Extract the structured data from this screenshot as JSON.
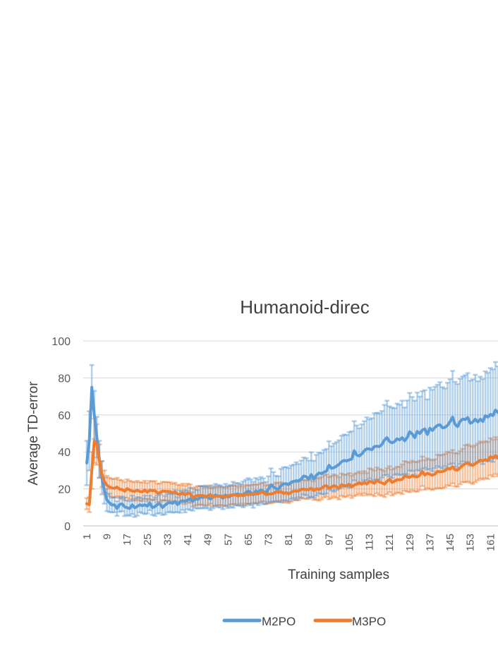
{
  "chart_data": {
    "type": "line",
    "title": "Humanoid-direc",
    "xlabel": "Training samples",
    "ylabel": "Average TD-error",
    "x": [
      1,
      2,
      3,
      4,
      5,
      6,
      7,
      8,
      9,
      10,
      11,
      12,
      13,
      14,
      15,
      16,
      17,
      18,
      19,
      20,
      21,
      22,
      23,
      24,
      25,
      26,
      27,
      28,
      29,
      30,
      31,
      32,
      33,
      34,
      35,
      36,
      37,
      38,
      39,
      40,
      41,
      42,
      43,
      44,
      45,
      46,
      47,
      48,
      49,
      50,
      51,
      52,
      53,
      54,
      55,
      56,
      57,
      58,
      59,
      60,
      61,
      62,
      63,
      64,
      65,
      66,
      67,
      68,
      69,
      70,
      71,
      72,
      73,
      74,
      75,
      76,
      77,
      78,
      79,
      80,
      81,
      82,
      83,
      84,
      85,
      86,
      87,
      88,
      89,
      90,
      91,
      92,
      93,
      94,
      95,
      96,
      97,
      98,
      99,
      100,
      101,
      102,
      103,
      104,
      105,
      106,
      107,
      108,
      109,
      110,
      111,
      112,
      113,
      114,
      115,
      116,
      117,
      118,
      119,
      120,
      121,
      122,
      123,
      124,
      125,
      126,
      127,
      128,
      129,
      130,
      131,
      132,
      133,
      134,
      135,
      136,
      137,
      138,
      139,
      140,
      141,
      142,
      143,
      144,
      145,
      146,
      147,
      148,
      149,
      150,
      151,
      152,
      153,
      154,
      155,
      156,
      157,
      158,
      159,
      160,
      161,
      162,
      163,
      164
    ],
    "x_ticks": [
      1,
      9,
      17,
      25,
      33,
      41,
      49,
      57,
      65,
      73,
      81,
      89,
      97,
      105,
      113,
      121,
      129,
      137,
      145,
      153,
      161
    ],
    "y_ticks": [
      0,
      20,
      40,
      60,
      80,
      100
    ],
    "ylim": [
      0,
      100
    ],
    "grid": "horizontal",
    "legend_position": "bottom",
    "error_bars": true,
    "series": [
      {
        "name": "M2PO",
        "color": "#5B9BD5",
        "values": [
          34.0,
          46.0,
          75.0,
          60.0,
          48.0,
          36.0,
          26.0,
          19.0,
          14.0,
          12.5,
          11.3,
          11.4,
          9.4,
          11.6,
          11.9,
          10.3,
          9.8,
          9.4,
          11.4,
          9.8,
          10.5,
          11.4,
          10.9,
          11.4,
          10.7,
          12.4,
          9.9,
          10.4,
          11.6,
          11.9,
          9.9,
          11.2,
          12.3,
          12.6,
          12.2,
          13.3,
          11.5,
          13.1,
          13.6,
          13.3,
          14.0,
          14.6,
          13.2,
          14.6,
          14.3,
          15.6,
          15.4,
          15.8,
          15.4,
          14.5,
          15.5,
          16.7,
          16.1,
          15.9,
          15.0,
          16.7,
          15.6,
          16.2,
          16.8,
          17.0,
          17.2,
          16.7,
          17.0,
          17.9,
          18.8,
          18.1,
          16.8,
          18.9,
          18.2,
          19.4,
          18.7,
          17.8,
          19.8,
          22.1,
          21.1,
          20.1,
          19.8,
          21.8,
          22.7,
          22.8,
          22.3,
          23.6,
          24.1,
          24.4,
          24.4,
          25.3,
          27.0,
          26.6,
          25.3,
          27.8,
          25.2,
          27.4,
          28.6,
          28.3,
          29.0,
          29.6,
          32.8,
          31.1,
          31.5,
          32.3,
          33.3,
          34.7,
          35.4,
          35.1,
          35.7,
          36.1,
          40.6,
          38.3,
          37.8,
          38.9,
          40.6,
          41.7,
          41.6,
          41.2,
          42.9,
          43.1,
          42.9,
          44.1,
          46.4,
          47.7,
          45.6,
          44.9,
          45.6,
          47.1,
          46.5,
          47.7,
          46.0,
          47.8,
          50.9,
          49.7,
          47.7,
          51.1,
          49.9,
          51.8,
          52.4,
          49.4,
          52.8,
          51.6,
          53.2,
          54.3,
          54.7,
          53.0,
          53.3,
          54.4,
          56.3,
          58.8,
          54.9,
          53.7,
          56.5,
          57.8,
          57.5,
          58.6,
          55.5,
          56.2,
          57.7,
          56.2,
          57.7,
          56.4,
          59.6,
          58.8,
          60.3,
          59.6,
          62.6,
          61.3
        ],
        "error": [
          12,
          16,
          12,
          13,
          11,
          10,
          9,
          7,
          6,
          5,
          4,
          4,
          4,
          4,
          4,
          5,
          4,
          4,
          5,
          5,
          5,
          4,
          4,
          5,
          4,
          4,
          4,
          5,
          5,
          5,
          4,
          5,
          5,
          5,
          5,
          6,
          4,
          6,
          5,
          6,
          5,
          6,
          5,
          5,
          5,
          6,
          6,
          6,
          6,
          6,
          6,
          6,
          6,
          6,
          6,
          6,
          6,
          6,
          7,
          6,
          6,
          6,
          7,
          7,
          7,
          7,
          7,
          7,
          7,
          7,
          7,
          6,
          7,
          9,
          8,
          7,
          7,
          9,
          9,
          9,
          9,
          9,
          9,
          10,
          9,
          10,
          10,
          10,
          10,
          12,
          10,
          11,
          11,
          11,
          12,
          12,
          13,
          12,
          13,
          13,
          13,
          14,
          14,
          14,
          15,
          15,
          16,
          16,
          15,
          16,
          16,
          17,
          16,
          17,
          18,
          18,
          18,
          18,
          19,
          20,
          19,
          19,
          18,
          19,
          19,
          20,
          18,
          20,
          21,
          20,
          20,
          21,
          20,
          21,
          21,
          19,
          22,
          22,
          22,
          22,
          23,
          22,
          21,
          23,
          23,
          25,
          23,
          23,
          23,
          23,
          24,
          24,
          23,
          23,
          24,
          22,
          23,
          23,
          24,
          24,
          25,
          25,
          26,
          25
        ]
      },
      {
        "name": "M3PO",
        "color": "#ED7D31",
        "values": [
          12.0,
          11.5,
          30.0,
          46.0,
          44.0,
          35.0,
          28.0,
          24.0,
          22.0,
          21.0,
          20.5,
          20.3,
          21.0,
          19.9,
          19.6,
          18.7,
          20.2,
          19.4,
          18.9,
          18.6,
          19.3,
          18.6,
          18.4,
          19.4,
          18.2,
          19.3,
          19.0,
          19.2,
          17.8,
          17.9,
          18.8,
          18.7,
          18.6,
          18.6,
          17.8,
          18.3,
          17.2,
          17.0,
          17.8,
          16.8,
          17.8,
          17.4,
          15.4,
          16.0,
          16.5,
          16.4,
          16.4,
          15.8,
          16.2,
          17.0,
          15.5,
          16.0,
          16.2,
          16.1,
          16.1,
          15.6,
          16.2,
          16.7,
          16.7,
          16.8,
          16.1,
          17.0,
          16.2,
          17.1,
          16.9,
          17.0,
          17.4,
          17.3,
          17.4,
          18.2,
          18.2,
          16.9,
          17.2,
          17.2,
          17.6,
          18.5,
          18.1,
          18.6,
          17.5,
          18.0,
          17.3,
          18.1,
          18.9,
          18.8,
          18.9,
          19.8,
          19.8,
          19.6,
          19.7,
          20.4,
          19.1,
          20.1,
          19.6,
          20.3,
          21.4,
          21.8,
          20.4,
          21.0,
          21.8,
          21.2,
          20.3,
          22.3,
          21.6,
          21.8,
          22.5,
          21.1,
          22.1,
          22.6,
          23.4,
          22.5,
          23.6,
          22.6,
          24.1,
          23.7,
          23.0,
          24.6,
          23.7,
          23.3,
          22.6,
          24.1,
          25.2,
          23.5,
          24.2,
          25.0,
          24.9,
          25.2,
          27.0,
          26.6,
          26.2,
          27.2,
          26.6,
          26.5,
          27.3,
          29.5,
          27.5,
          28.5,
          27.9,
          27.4,
          28.0,
          29.5,
          29.2,
          29.4,
          29.9,
          31.0,
          30.7,
          32.0,
          30.3,
          30.2,
          31.5,
          32.7,
          33.6,
          34.0,
          33.3,
          32.7,
          33.6,
          34.6,
          35.6,
          35.1,
          35.8,
          35.4,
          37.4,
          36.6,
          38.0,
          36.8
        ],
        "error": [
          3,
          4,
          10,
          12,
          11,
          9,
          7,
          6,
          5,
          5,
          5,
          5,
          5,
          5,
          5,
          5,
          5,
          5,
          5,
          5,
          5,
          5,
          5,
          5,
          5,
          5,
          5,
          5,
          5,
          5,
          5,
          5,
          5,
          5,
          5,
          5,
          5,
          5,
          5,
          5,
          5,
          5,
          5,
          5,
          5,
          5,
          5,
          5,
          5,
          5,
          5,
          5,
          5,
          5,
          5,
          5,
          5,
          5,
          5,
          5,
          5,
          5,
          5,
          5,
          5,
          5,
          5,
          5,
          5,
          5,
          5,
          5,
          5,
          5,
          5,
          5,
          5,
          5,
          5,
          5,
          5,
          5,
          5,
          5,
          5,
          5,
          5,
          5,
          5,
          5,
          5,
          6,
          6,
          6,
          6,
          6,
          6,
          6,
          6,
          6,
          6,
          6,
          6,
          6,
          6,
          6,
          6,
          6,
          6,
          6,
          6,
          6,
          7,
          7,
          7,
          7,
          7,
          7,
          7,
          7,
          7,
          7,
          7,
          7,
          7,
          8,
          8,
          8,
          8,
          8,
          8,
          8,
          8,
          8,
          8,
          8,
          8,
          8,
          8,
          9,
          9,
          9,
          9,
          9,
          9,
          9,
          9,
          9,
          9,
          9,
          10,
          10,
          10,
          10,
          10,
          10,
          10,
          10,
          10,
          10,
          10,
          10,
          10,
          10
        ]
      }
    ]
  }
}
